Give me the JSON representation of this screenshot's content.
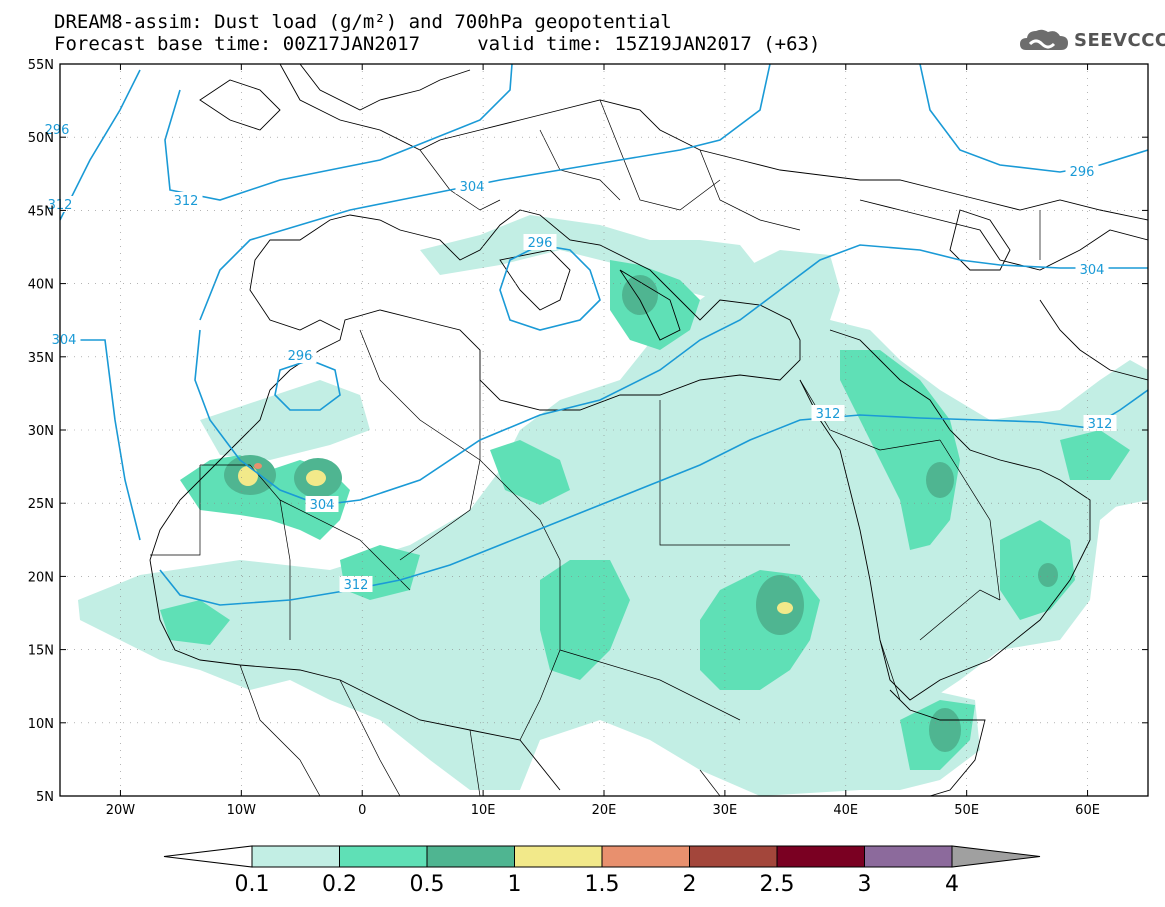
{
  "header": {
    "title_line1": "DREAM8-assim: Dust load (g/m²) and 700hPa geopotential",
    "title_line2": "Forecast base time: 00Z17JAN2017     valid time: 15Z19JAN2017 (+63)"
  },
  "logo": {
    "text": "SEEVCCC",
    "icon": "cloud-icon"
  },
  "map": {
    "lat_labels": [
      "55N",
      "50N",
      "45N",
      "40N",
      "35N",
      "30N",
      "25N",
      "20N",
      "15N",
      "10N",
      "5N"
    ],
    "lon_labels": [
      "20W",
      "10W",
      "0",
      "10E",
      "20E",
      "30E",
      "40E",
      "50E",
      "60E"
    ],
    "lat_values": [
      55,
      50,
      45,
      40,
      35,
      30,
      25,
      20,
      15,
      10,
      5
    ],
    "lon_values": [
      -20,
      -10,
      0,
      10,
      20,
      30,
      40,
      50,
      60
    ],
    "lon_range": [
      -25,
      65
    ],
    "lat_range": [
      5,
      55
    ],
    "gridlines": true
  },
  "contours": {
    "color": "#1a9ad6",
    "labels": [
      "312",
      "304",
      "296",
      "296",
      "304",
      "312",
      "304",
      "312",
      "296",
      "304",
      "312",
      "312",
      "296",
      "304"
    ]
  },
  "colorbar": {
    "labels": [
      "0.1",
      "0.2",
      "0.5",
      "1",
      "1.5",
      "2",
      "2.5",
      "3",
      "4"
    ],
    "colors": [
      "#c2eee4",
      "#5fe0b6",
      "#4fb591",
      "#f2e98a",
      "#e8906e",
      "#a3463b",
      "#7a0022",
      "#8c6a9c"
    ],
    "under_color": "#ffffff",
    "over_color": "#a0a0a0"
  }
}
